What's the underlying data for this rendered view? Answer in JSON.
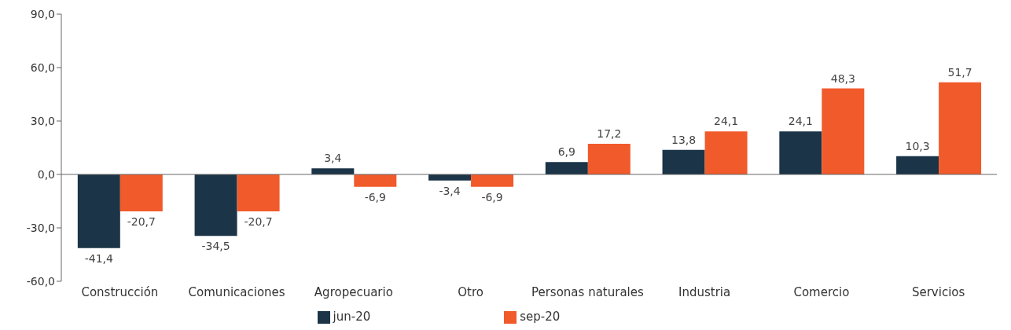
{
  "chart_data": {
    "type": "bar",
    "categories": [
      "Construcción",
      "Comunicaciones",
      "Agropecuario",
      "Otro",
      "Personas naturales",
      "Industria",
      "Comercio",
      "Servicios"
    ],
    "series": [
      {
        "name": "jun-20",
        "color": "#1b3447",
        "values": [
          -41.4,
          -34.5,
          3.4,
          -3.4,
          6.9,
          13.8,
          24.1,
          10.3
        ],
        "value_labels": [
          "-41,4",
          "-34,5",
          "3,4",
          "-3,4",
          "6,9",
          "13,8",
          "24,1",
          "10,3"
        ]
      },
      {
        "name": "sep-20",
        "color": "#f15a2b",
        "values": [
          -20.7,
          -20.7,
          -6.9,
          -6.9,
          17.2,
          24.1,
          48.3,
          51.7
        ],
        "value_labels": [
          "-20,7",
          "-20,7",
          "-6,9",
          "-6,9",
          "17,2",
          "24,1",
          "48,3",
          "51,7"
        ]
      }
    ],
    "ylim": [
      -60,
      90
    ],
    "yticks": [
      {
        "value": -60,
        "label": "-60,0"
      },
      {
        "value": -30,
        "label": "-30,0"
      },
      {
        "value": 0,
        "label": "0,0"
      },
      {
        "value": 30,
        "label": "30,0"
      },
      {
        "value": 60,
        "label": "60,0"
      },
      {
        "value": 90,
        "label": "90,0"
      }
    ],
    "legend": "bottom"
  }
}
